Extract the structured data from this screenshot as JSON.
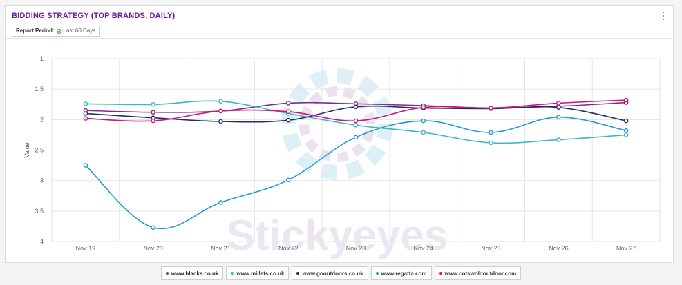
{
  "header": {
    "title": "BIDDING STRATEGY (TOP BRANDS, DAILY)",
    "period_label": "Report Period:",
    "period_value": "Last 60 Days"
  },
  "watermark": "Stickyeyes",
  "chart_data": {
    "type": "line",
    "title": "BIDDING STRATEGY (TOP BRANDS, DAILY)",
    "xlabel": "",
    "ylabel": "Value",
    "ylim": [
      1,
      4
    ],
    "y_reversed": true,
    "yticks": [
      "1",
      "1.5",
      "2",
      "2.5",
      "3",
      "3.5",
      "4"
    ],
    "grid": true,
    "legend_position": "bottom",
    "categories": [
      "Nov 19",
      "Nov 20",
      "Nov 21",
      "Nov 22",
      "Nov 23",
      "Nov 24",
      "Nov 25",
      "Nov 26",
      "Nov 27"
    ],
    "series": [
      {
        "name": "www.blacks.co.uk",
        "color": "#7b2d8e",
        "values": [
          1.85,
          1.88,
          1.86,
          1.73,
          1.74,
          1.77,
          1.81,
          1.78,
          1.72
        ]
      },
      {
        "name": "www.millets.co.uk",
        "color": "#3bb8c8",
        "values": [
          1.74,
          1.75,
          1.7,
          1.9,
          2.09,
          2.21,
          2.38,
          2.33,
          2.25
        ]
      },
      {
        "name": "www.gooutdoors.co.uk",
        "color": "#1f2d6e",
        "values": [
          1.9,
          1.97,
          2.03,
          2.01,
          1.79,
          1.81,
          1.82,
          1.8,
          2.02
        ]
      },
      {
        "name": "www.regatta.com",
        "color": "#1e9ad8",
        "values": [
          2.75,
          3.77,
          3.36,
          2.99,
          2.29,
          2.02,
          2.21,
          1.96,
          2.18
        ]
      },
      {
        "name": "www.cotswoldoutdoor.com",
        "color": "#d3137a",
        "values": [
          1.98,
          2.02,
          1.86,
          1.87,
          2.02,
          1.8,
          1.81,
          1.73,
          1.68
        ]
      }
    ]
  }
}
